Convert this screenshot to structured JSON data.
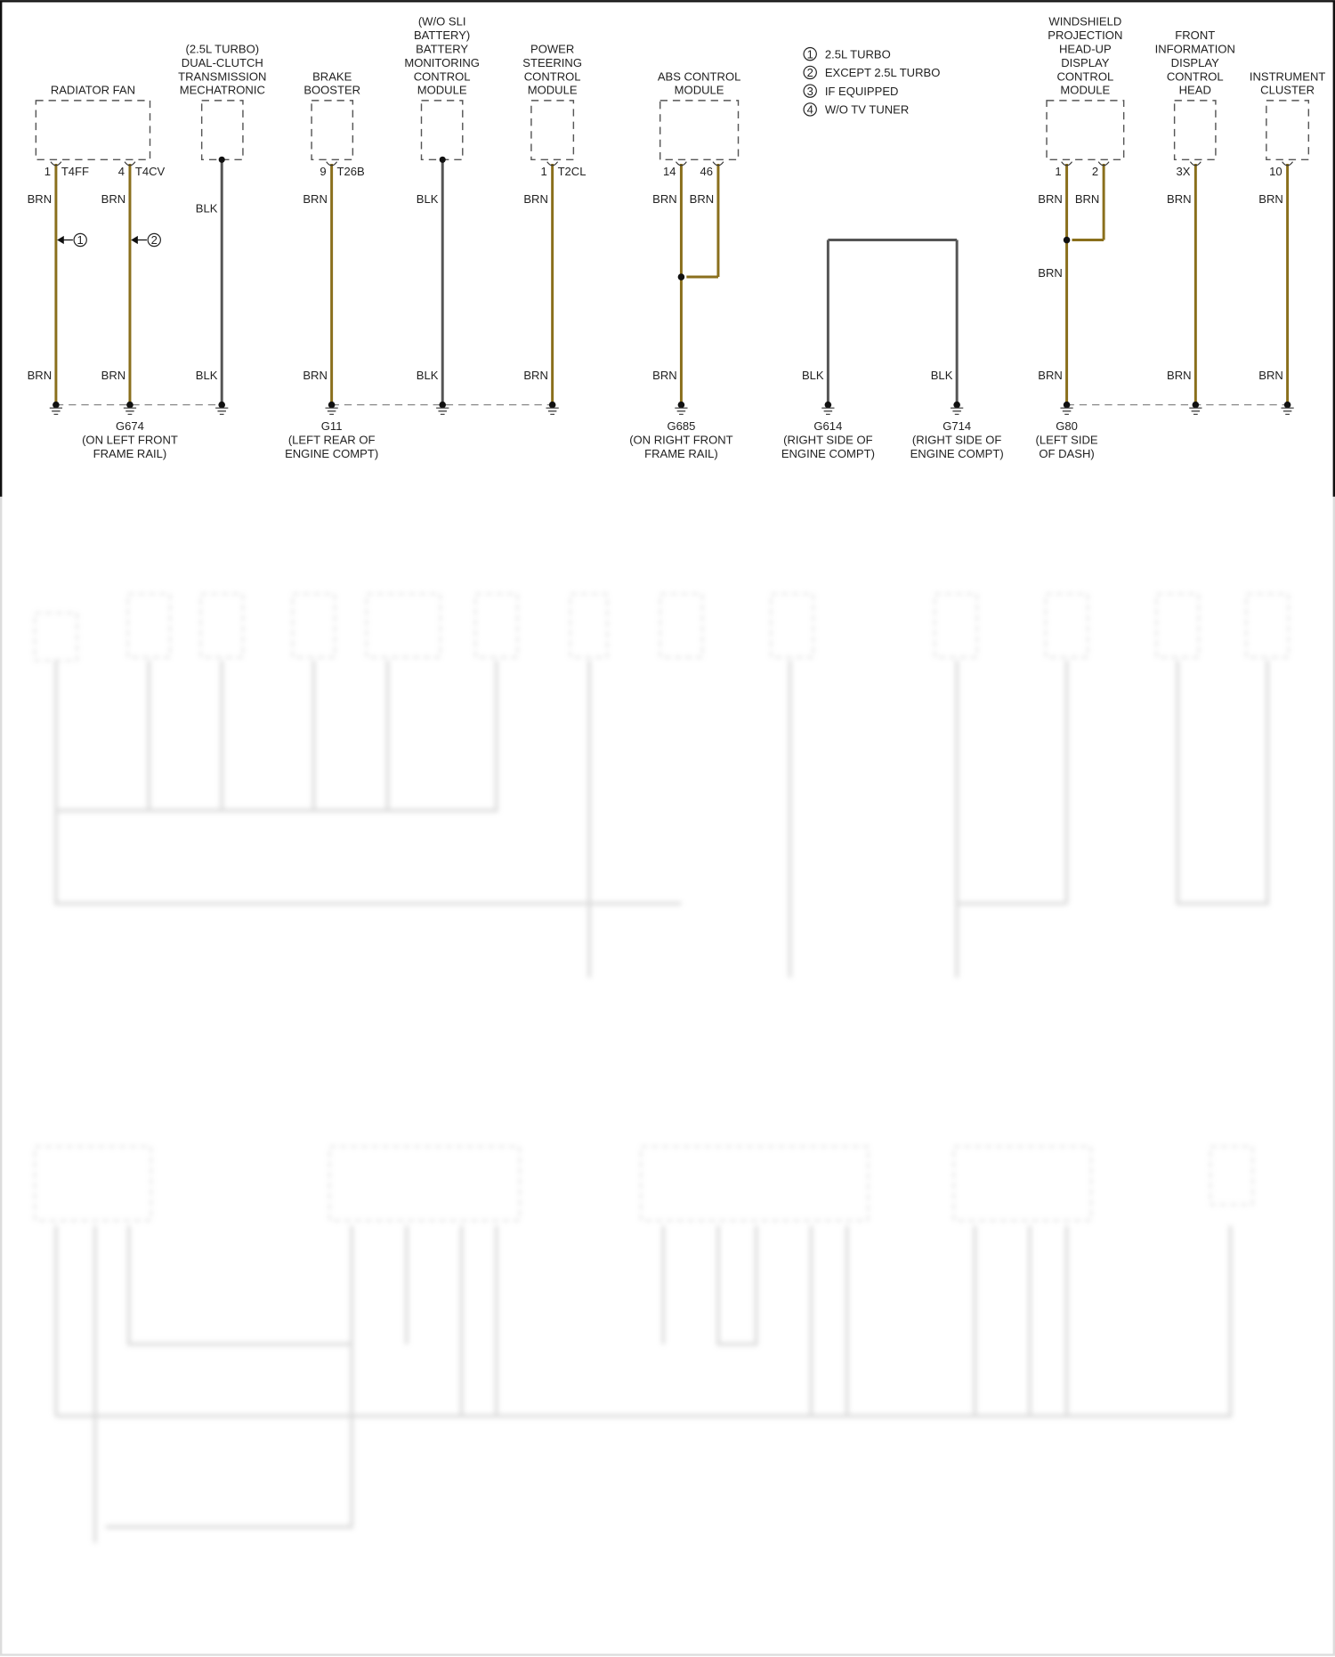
{
  "colors": {
    "BRN": "#8a6f1c",
    "BLK": "#555555",
    "box": "#555555",
    "frame": "#111111"
  },
  "legend": [
    {
      "num": "1",
      "text": "2.5L TURBO"
    },
    {
      "num": "2",
      "text": "EXCEPT 2.5L TURBO"
    },
    {
      "num": "3",
      "text": "IF EQUIPPED"
    },
    {
      "num": "4",
      "text": "W/O TV TUNER"
    }
  ],
  "components": [
    {
      "label": [
        "RADIATOR FAN"
      ]
    },
    {
      "label": [
        "(2.5L TURBO)",
        "DUAL-CLUTCH",
        "TRANSMISSION",
        "MECHATRONIC"
      ]
    },
    {
      "label": [
        "BRAKE",
        "BOOSTER"
      ]
    },
    {
      "label": [
        "(W/O SLI",
        "BATTERY)",
        "BATTERY",
        "MONITORING",
        "CONTROL",
        "MODULE"
      ]
    },
    {
      "label": [
        "POWER",
        "STEERING",
        "CONTROL",
        "MODULE"
      ]
    },
    {
      "label": [
        "ABS CONTROL",
        "MODULE"
      ]
    },
    {
      "label": [
        "WINDSHIELD",
        "PROJECTION",
        "HEAD-UP",
        "DISPLAY",
        "CONTROL",
        "MODULE"
      ]
    },
    {
      "label": [
        "FRONT",
        "INFORMATION",
        "DISPLAY",
        "CONTROL",
        "HEAD"
      ]
    },
    {
      "label": [
        "INSTRUMENT",
        "CLUSTER"
      ]
    }
  ],
  "wires": [
    {
      "color": "BRN",
      "pin": "1",
      "connector": "T4FF",
      "top": "BRN",
      "bottom": "BRN",
      "callout": "1"
    },
    {
      "color": "BRN",
      "pin": "4",
      "connector": "T4CV",
      "top": "BRN",
      "bottom": "BRN",
      "callout": "2"
    },
    {
      "color": "BLK",
      "top": "BLK",
      "bottom": "BLK"
    },
    {
      "color": "BRN",
      "pin": "9",
      "connector": "T26B",
      "top": "BRN",
      "bottom": "BRN"
    },
    {
      "color": "BLK",
      "top": "BLK",
      "bottom": "BLK"
    },
    {
      "color": "BRN",
      "pin": "1",
      "connector": "T2CL",
      "top": "BRN",
      "bottom": "BRN"
    },
    {
      "color": "BRN",
      "pin": "14",
      "top": "BRN",
      "bottom": "BRN"
    },
    {
      "color": "BRN",
      "pin": "46",
      "top": "BRN"
    },
    {
      "color": "BLK",
      "bottom": "BLK"
    },
    {
      "color": "BLK",
      "bottom": "BLK"
    },
    {
      "color": "BRN",
      "pin": "1",
      "top": "BRN",
      "mid": "BRN",
      "bottom": "BRN"
    },
    {
      "color": "BRN",
      "pin": "2",
      "top": "BRN"
    },
    {
      "color": "BRN",
      "pin": "3X",
      "top": "BRN",
      "bottom": "BRN"
    },
    {
      "color": "BRN",
      "pin": "10",
      "top": "BRN",
      "bottom": "BRN"
    }
  ],
  "grounds": [
    {
      "id": "G674",
      "location": [
        "(ON LEFT FRONT",
        "FRAME RAIL)"
      ]
    },
    {
      "id": "G11",
      "location": [
        "(LEFT REAR OF",
        "ENGINE COMPT)"
      ]
    },
    {
      "id": "G685",
      "location": [
        "(ON RIGHT FRONT",
        "FRAME RAIL)"
      ]
    },
    {
      "id": "G614",
      "location": [
        "(RIGHT SIDE OF",
        "ENGINE COMPT)"
      ]
    },
    {
      "id": "G714",
      "location": [
        "(RIGHT SIDE OF",
        "ENGINE COMPT)"
      ]
    },
    {
      "id": "G80",
      "location": [
        "(LEFT SIDE",
        "OF DASH)"
      ]
    }
  ]
}
